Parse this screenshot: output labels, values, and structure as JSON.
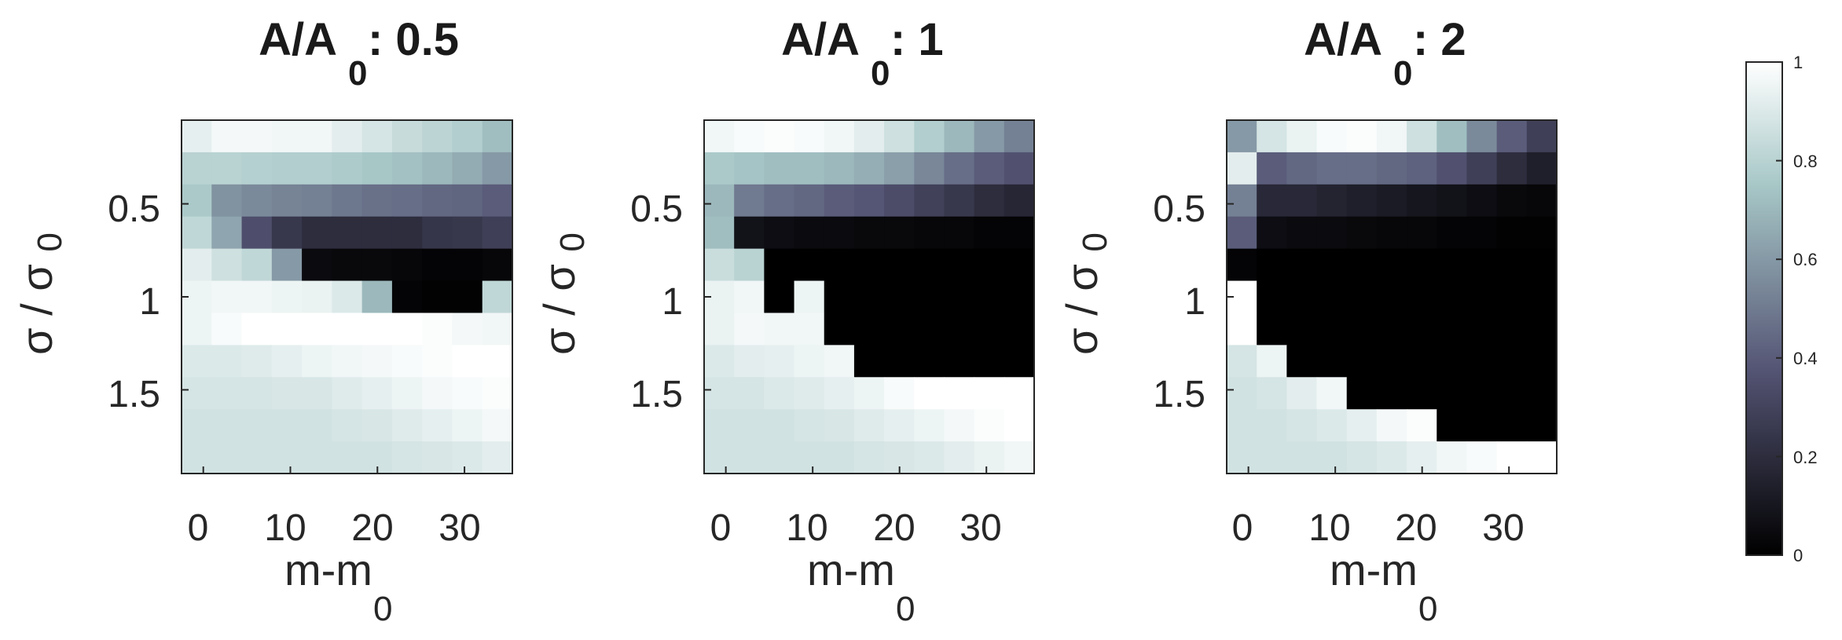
{
  "chart_data": {
    "type": "heatmap",
    "colormap": "bone",
    "colorbar": {
      "ticks": [
        0,
        0.2,
        0.4,
        0.6,
        0.8,
        1
      ],
      "tick_labels": [
        "0",
        "0.2",
        "0.4",
        "0.6",
        "0.8",
        "1"
      ],
      "range": [
        0,
        1
      ]
    },
    "grid": {
      "cols": 11,
      "rows": 11
    },
    "panels": [
      {
        "title_main": "A/A",
        "title_sub": "0",
        "title_value": ": 0.5",
        "xlabel_main": "m-m",
        "xlabel_sub": "0",
        "ylabel_main": "σ / σ",
        "ylabel_sub": "0",
        "xlim": [
          -2.5,
          35.5
        ],
        "ylim": [
          0.05,
          1.95
        ],
        "xticks": [
          0,
          10,
          20,
          30
        ],
        "xtick_labels": [
          "0",
          "10",
          "20",
          "30"
        ],
        "yticks": [
          0.5,
          1,
          1.5
        ],
        "ytick_labels": [
          "0.5",
          "1",
          "1.5"
        ],
        "values": [
          [
            0.93,
            0.97,
            0.97,
            0.96,
            0.96,
            0.92,
            0.88,
            0.84,
            0.81,
            0.78,
            0.72
          ],
          [
            0.8,
            0.8,
            0.79,
            0.78,
            0.78,
            0.77,
            0.75,
            0.73,
            0.7,
            0.66,
            0.6
          ],
          [
            0.76,
            0.58,
            0.55,
            0.53,
            0.52,
            0.49,
            0.47,
            0.46,
            0.44,
            0.43,
            0.4
          ],
          [
            0.82,
            0.64,
            0.35,
            0.25,
            0.2,
            0.2,
            0.2,
            0.2,
            0.24,
            0.25,
            0.28
          ],
          [
            0.92,
            0.86,
            0.82,
            0.6,
            0.05,
            0.04,
            0.04,
            0.03,
            0.02,
            0.02,
            0.03
          ],
          [
            0.95,
            0.96,
            0.96,
            0.95,
            0.94,
            0.9,
            0.7,
            0.02,
            0.01,
            0.01,
            0.82
          ],
          [
            0.95,
            0.98,
            1.0,
            1.0,
            1.0,
            1.0,
            1.0,
            1.0,
            0.99,
            0.97,
            0.96
          ],
          [
            0.9,
            0.9,
            0.91,
            0.93,
            0.95,
            0.96,
            0.97,
            0.98,
            0.99,
            1.0,
            1.0
          ],
          [
            0.88,
            0.88,
            0.88,
            0.89,
            0.89,
            0.91,
            0.93,
            0.95,
            0.97,
            0.98,
            0.99
          ],
          [
            0.87,
            0.87,
            0.87,
            0.87,
            0.87,
            0.88,
            0.89,
            0.91,
            0.93,
            0.95,
            0.97
          ],
          [
            0.87,
            0.87,
            0.87,
            0.87,
            0.87,
            0.87,
            0.87,
            0.88,
            0.89,
            0.9,
            0.92
          ]
        ]
      },
      {
        "title_main": "A/A",
        "title_sub": "0",
        "title_value": ": 1",
        "xlabel_main": "m-m",
        "xlabel_sub": "0",
        "ylabel_main": "σ / σ",
        "ylabel_sub": "0",
        "xlim": [
          -2.5,
          35.5
        ],
        "ylim": [
          0.05,
          1.95
        ],
        "xticks": [
          0,
          10,
          20,
          30
        ],
        "xtick_labels": [
          "0",
          "10",
          "20",
          "30"
        ],
        "yticks": [
          0.5,
          1,
          1.5
        ],
        "ytick_labels": [
          "0.5",
          "1",
          "1.5"
        ],
        "values": [
          [
            0.96,
            0.98,
            0.99,
            0.98,
            0.96,
            0.92,
            0.86,
            0.78,
            0.7,
            0.6,
            0.52
          ],
          [
            0.76,
            0.74,
            0.72,
            0.72,
            0.7,
            0.67,
            0.62,
            0.54,
            0.46,
            0.4,
            0.36
          ],
          [
            0.7,
            0.5,
            0.46,
            0.44,
            0.4,
            0.38,
            0.34,
            0.29,
            0.25,
            0.2,
            0.17
          ],
          [
            0.72,
            0.08,
            0.06,
            0.05,
            0.05,
            0.04,
            0.04,
            0.03,
            0.03,
            0.02,
            0.02
          ],
          [
            0.85,
            0.8,
            0.0,
            0.0,
            0.0,
            0.0,
            0.0,
            0.0,
            0.0,
            0.0,
            0.0
          ],
          [
            0.94,
            0.96,
            0.0,
            0.95,
            0.0,
            0.0,
            0.0,
            0.0,
            0.0,
            0.0,
            0.0
          ],
          [
            0.94,
            0.97,
            0.96,
            0.96,
            0.0,
            0.0,
            0.0,
            0.0,
            0.0,
            0.0,
            0.0
          ],
          [
            0.9,
            0.92,
            0.93,
            0.95,
            0.96,
            0.0,
            0.0,
            0.0,
            0.0,
            0.0,
            0.0
          ],
          [
            0.88,
            0.88,
            0.9,
            0.91,
            0.93,
            0.95,
            0.98,
            1.0,
            1.0,
            1.0,
            1.0
          ],
          [
            0.87,
            0.87,
            0.87,
            0.88,
            0.89,
            0.91,
            0.93,
            0.95,
            0.97,
            0.99,
            1.0
          ],
          [
            0.87,
            0.87,
            0.87,
            0.87,
            0.87,
            0.88,
            0.89,
            0.9,
            0.92,
            0.94,
            0.96
          ]
        ]
      },
      {
        "title_main": "A/A",
        "title_sub": "0",
        "title_value": ": 2",
        "xlabel_main": "m-m",
        "xlabel_sub": "0",
        "ylabel_main": "σ / σ",
        "ylabel_sub": "0",
        "xlim": [
          -2.5,
          35.5
        ],
        "ylim": [
          0.05,
          1.95
        ],
        "xticks": [
          0,
          10,
          20,
          30
        ],
        "xtick_labels": [
          "0",
          "10",
          "20",
          "30"
        ],
        "yticks": [
          0.5,
          1,
          1.5
        ],
        "ytick_labels": [
          "0.5",
          "1",
          "1.5"
        ],
        "values": [
          [
            0.6,
            0.88,
            0.94,
            0.98,
            0.99,
            0.96,
            0.86,
            0.72,
            0.55,
            0.4,
            0.28
          ],
          [
            0.92,
            0.4,
            0.44,
            0.46,
            0.46,
            0.44,
            0.42,
            0.36,
            0.28,
            0.2,
            0.14
          ],
          [
            0.52,
            0.18,
            0.18,
            0.16,
            0.14,
            0.12,
            0.1,
            0.08,
            0.06,
            0.04,
            0.03
          ],
          [
            0.4,
            0.06,
            0.05,
            0.05,
            0.04,
            0.03,
            0.03,
            0.02,
            0.02,
            0.01,
            0.01
          ],
          [
            0.02,
            0.0,
            0.0,
            0.0,
            0.0,
            0.0,
            0.0,
            0.0,
            0.0,
            0.0,
            0.0
          ],
          [
            1.0,
            0.0,
            0.0,
            0.0,
            0.0,
            0.0,
            0.0,
            0.0,
            0.0,
            0.0,
            0.0
          ],
          [
            1.0,
            0.0,
            0.0,
            0.0,
            0.0,
            0.0,
            0.0,
            0.0,
            0.0,
            0.0,
            0.0
          ],
          [
            0.88,
            0.95,
            0.0,
            0.0,
            0.0,
            0.0,
            0.0,
            0.0,
            0.0,
            0.0,
            0.0
          ],
          [
            0.87,
            0.88,
            0.92,
            0.96,
            0.0,
            0.0,
            0.0,
            0.0,
            0.0,
            0.0,
            0.0
          ],
          [
            0.87,
            0.87,
            0.88,
            0.9,
            0.93,
            0.97,
            0.99,
            0.0,
            0.0,
            0.0,
            0.0
          ],
          [
            0.87,
            0.87,
            0.87,
            0.87,
            0.88,
            0.9,
            0.93,
            0.96,
            0.98,
            1.0,
            1.0
          ]
        ]
      }
    ]
  }
}
